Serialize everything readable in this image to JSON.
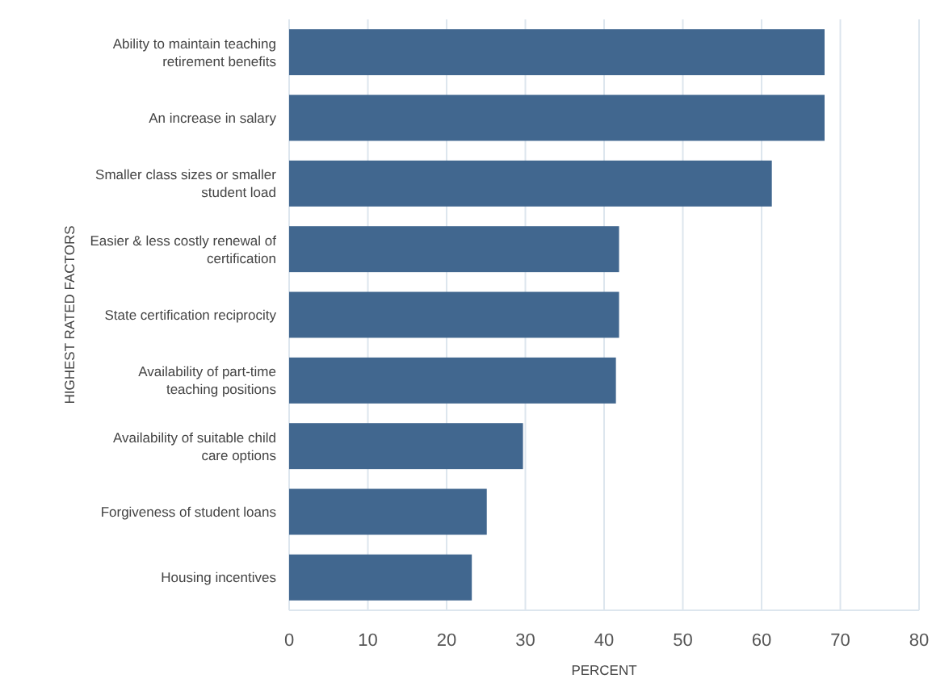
{
  "chart_data": {
    "type": "bar",
    "orientation": "horizontal",
    "ylabel": "HIGHEST RATED FACTORS",
    "xlabel": "PERCENT",
    "categories": [
      "Ability to maintain teaching retirement benefits",
      "An increase in salary",
      "Smaller class sizes or smaller student load",
      "Easier & less costly renewal of certification",
      "State certification reciprocity",
      "Availability of part-time teaching positions",
      "Availability of suitable child care options",
      "Forgiveness of student loans",
      "Housing incentives"
    ],
    "values": [
      68,
      68,
      61.3,
      41.9,
      41.9,
      41.5,
      29.7,
      25.1,
      23.2
    ],
    "color": "#41678f",
    "xlim": [
      0,
      80
    ],
    "xticks": [
      0,
      10,
      20,
      30,
      40,
      50,
      60,
      70,
      80
    ],
    "grid": "x"
  }
}
